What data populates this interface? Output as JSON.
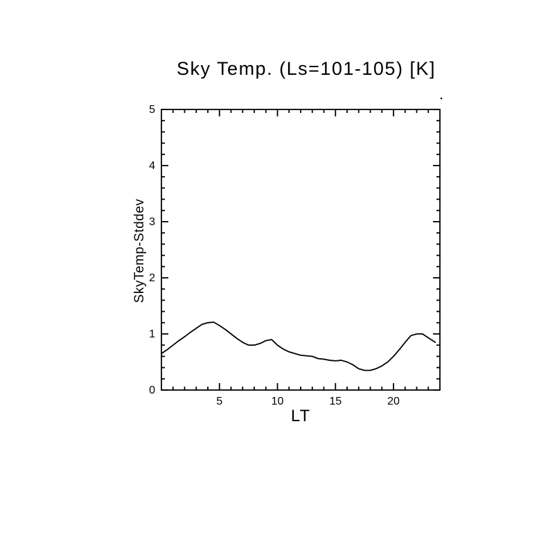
{
  "chart_data": {
    "type": "line",
    "title": "Sky Temp. (Ls=101-105) [K]",
    "xlabel": "LT",
    "ylabel": "SkyTemp-Stddev",
    "xlim": [
      0,
      24
    ],
    "ylim": [
      0,
      5
    ],
    "xticks": [
      5,
      10,
      15,
      20
    ],
    "yticks": [
      0,
      1,
      2,
      3,
      4,
      5
    ],
    "x_minor_step": 1,
    "y_minor_step": 0.2,
    "grid": false,
    "legend": "none",
    "line_color": "#000000",
    "background_color": "#ffffff",
    "series": [
      {
        "name": "SkyTemp-Stddev",
        "x": [
          0,
          0.5,
          1,
          1.5,
          2,
          2.5,
          3,
          3.5,
          4,
          4.5,
          5,
          5.5,
          6,
          6.5,
          7,
          7.5,
          8,
          8.5,
          9,
          9.5,
          10,
          10.5,
          11,
          11.5,
          12,
          12.5,
          13,
          13.5,
          14,
          14.5,
          15,
          15.5,
          16,
          16.5,
          17,
          17.5,
          18,
          18.5,
          19,
          19.5,
          20,
          20.5,
          21,
          21.5,
          22,
          22.5,
          23,
          23.6
        ],
        "y": [
          0.65,
          0.72,
          0.8,
          0.88,
          0.95,
          1.03,
          1.1,
          1.17,
          1.2,
          1.21,
          1.15,
          1.08,
          1.0,
          0.92,
          0.85,
          0.8,
          0.8,
          0.83,
          0.88,
          0.9,
          0.8,
          0.73,
          0.68,
          0.65,
          0.62,
          0.61,
          0.6,
          0.56,
          0.55,
          0.53,
          0.52,
          0.53,
          0.5,
          0.45,
          0.38,
          0.35,
          0.35,
          0.38,
          0.43,
          0.5,
          0.6,
          0.72,
          0.85,
          0.97,
          1.0,
          1.0,
          0.93,
          0.85
        ]
      }
    ]
  }
}
